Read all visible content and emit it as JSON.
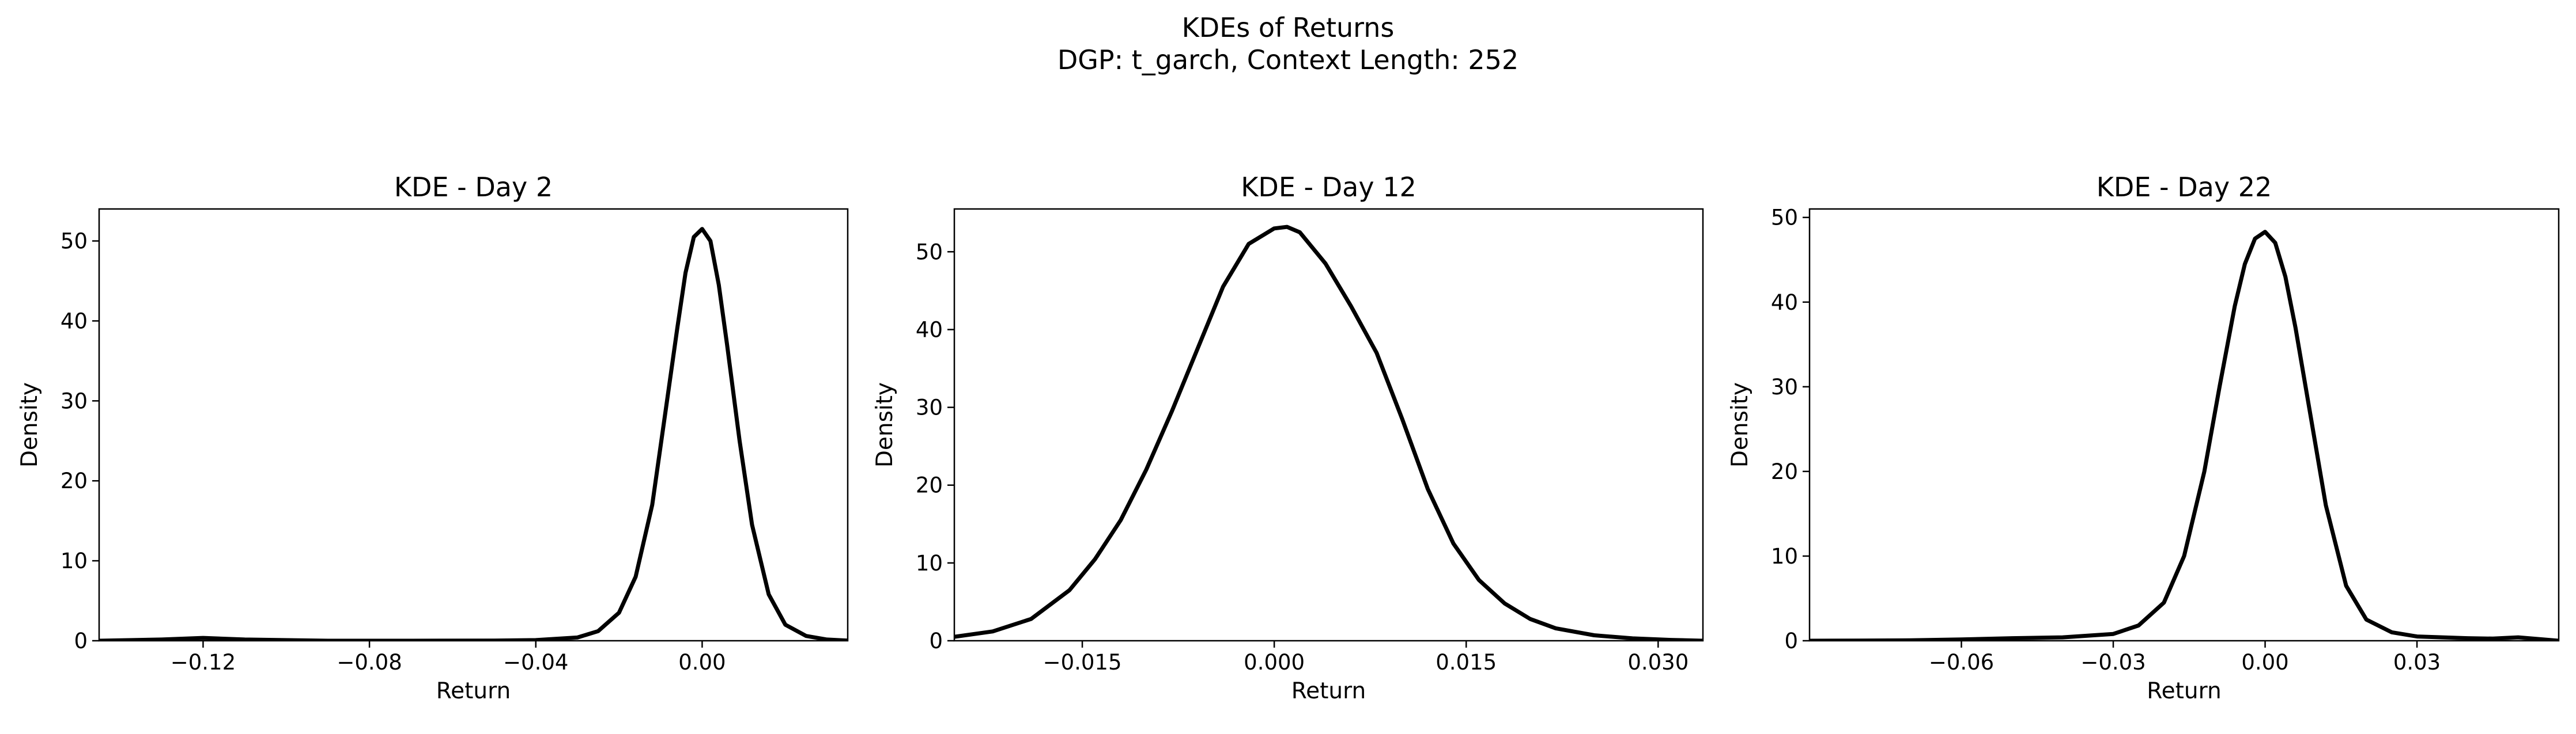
{
  "figure": {
    "title_line1": "KDEs of Returns",
    "title_line2": "DGP: t_garch, Context Length: 252"
  },
  "chart_data": [
    {
      "type": "line",
      "title": "KDE - Day 2",
      "xlabel": "Return",
      "ylabel": "Density",
      "xlim": [
        -0.145,
        0.035
      ],
      "ylim": [
        0,
        54
      ],
      "xticks": [
        -0.12,
        -0.08,
        -0.04,
        0.0
      ],
      "xtick_labels": [
        "−0.12",
        "−0.08",
        "−0.04",
        "0.00"
      ],
      "yticks": [
        0,
        10,
        20,
        30,
        40,
        50
      ],
      "ytick_labels": [
        "0",
        "10",
        "20",
        "30",
        "40",
        "50"
      ],
      "grid": false,
      "series": [
        {
          "color": "#000000",
          "x": [
            -0.145,
            -0.13,
            -0.12,
            -0.11,
            -0.09,
            -0.07,
            -0.05,
            -0.04,
            -0.03,
            -0.025,
            -0.02,
            -0.016,
            -0.012,
            -0.009,
            -0.006,
            -0.004,
            -0.002,
            0.0,
            0.002,
            0.004,
            0.006,
            0.009,
            0.012,
            0.016,
            0.02,
            0.025,
            0.03,
            0.035
          ],
          "y": [
            0.0,
            0.15,
            0.35,
            0.15,
            0.0,
            0.0,
            0.02,
            0.08,
            0.4,
            1.2,
            3.5,
            8.0,
            17.0,
            28.0,
            39.0,
            46.0,
            50.5,
            51.5,
            50.0,
            44.5,
            37.0,
            25.0,
            14.5,
            5.8,
            2.0,
            0.6,
            0.15,
            0.02
          ]
        }
      ]
    },
    {
      "type": "line",
      "title": "KDE - Day 12",
      "xlabel": "Return",
      "ylabel": "Density",
      "xlim": [
        -0.025,
        0.0335
      ],
      "ylim": [
        0,
        55.5
      ],
      "xticks": [
        -0.015,
        0.0,
        0.015,
        0.03
      ],
      "xtick_labels": [
        "−0.015",
        "0.000",
        "0.015",
        "0.030"
      ],
      "yticks": [
        0,
        10,
        20,
        30,
        40,
        50
      ],
      "ytick_labels": [
        "0",
        "10",
        "20",
        "30",
        "40",
        "50"
      ],
      "grid": false,
      "series": [
        {
          "color": "#000000",
          "x": [
            -0.025,
            -0.022,
            -0.019,
            -0.016,
            -0.014,
            -0.012,
            -0.01,
            -0.008,
            -0.006,
            -0.004,
            -0.002,
            0.0,
            0.001,
            0.002,
            0.004,
            0.006,
            0.008,
            0.01,
            0.012,
            0.014,
            0.016,
            0.018,
            0.02,
            0.022,
            0.025,
            0.028,
            0.031,
            0.0335
          ],
          "y": [
            0.5,
            1.2,
            2.8,
            6.5,
            10.5,
            15.5,
            22.0,
            29.5,
            37.5,
            45.5,
            51.0,
            53.0,
            53.2,
            52.5,
            48.5,
            43.0,
            37.0,
            28.5,
            19.5,
            12.5,
            7.8,
            4.8,
            2.8,
            1.6,
            0.7,
            0.3,
            0.1,
            0.0
          ]
        }
      ]
    },
    {
      "type": "line",
      "title": "KDE - Day 22",
      "xlabel": "Return",
      "ylabel": "Density",
      "xlim": [
        -0.09,
        0.058
      ],
      "ylim": [
        0,
        51
      ],
      "xticks": [
        -0.06,
        -0.03,
        0.0,
        0.03
      ],
      "xtick_labels": [
        "−0.06",
        "−0.03",
        "0.00",
        "0.03"
      ],
      "yticks": [
        0,
        10,
        20,
        30,
        40,
        50
      ],
      "ytick_labels": [
        "0",
        "10",
        "20",
        "30",
        "40",
        "50"
      ],
      "grid": false,
      "series": [
        {
          "color": "#000000",
          "x": [
            -0.09,
            -0.08,
            -0.07,
            -0.06,
            -0.05,
            -0.04,
            -0.03,
            -0.025,
            -0.02,
            -0.016,
            -0.012,
            -0.009,
            -0.006,
            -0.004,
            -0.002,
            0.0,
            0.002,
            0.004,
            0.006,
            0.009,
            0.012,
            0.016,
            0.02,
            0.025,
            0.03,
            0.035,
            0.04,
            0.045,
            0.05,
            0.058
          ],
          "y": [
            0.0,
            0.02,
            0.05,
            0.15,
            0.3,
            0.4,
            0.8,
            1.8,
            4.5,
            10.0,
            20.0,
            30.0,
            39.5,
            44.5,
            47.5,
            48.3,
            47.0,
            43.0,
            37.0,
            26.5,
            16.0,
            6.5,
            2.5,
            1.0,
            0.5,
            0.4,
            0.3,
            0.25,
            0.4,
            0.0
          ]
        }
      ]
    }
  ]
}
